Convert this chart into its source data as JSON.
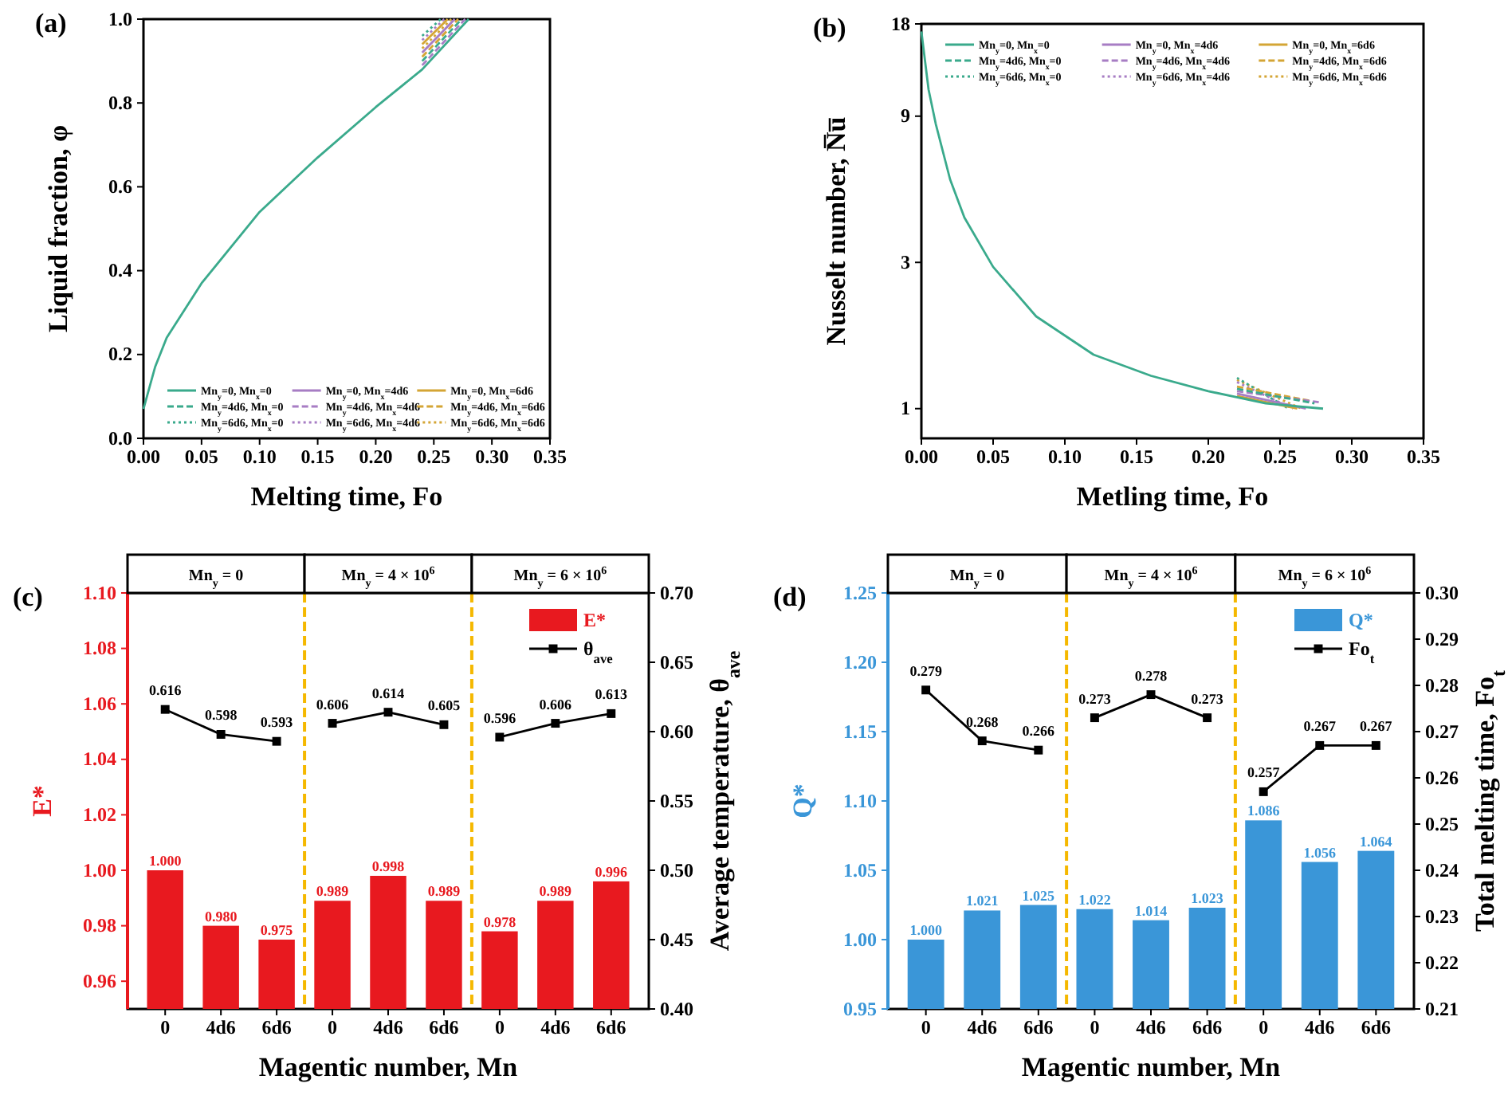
{
  "chart_data": [
    {
      "type": "line",
      "title": "(a)",
      "xlabel": "Melting time, Fo",
      "ylabel": "Liquid fraction, φ",
      "xlim": [
        0,
        0.35
      ],
      "ylim": [
        0,
        1
      ],
      "xticks": [
        {
          "value": 0,
          "label": "0.00"
        },
        {
          "value": 0.05,
          "label": "0.05"
        },
        {
          "value": 0.1,
          "label": "0.10"
        },
        {
          "value": 0.15,
          "label": "0.15"
        },
        {
          "value": 0.2,
          "label": "0.20"
        },
        {
          "value": 0.25,
          "label": "0.25"
        },
        {
          "value": 0.3,
          "label": "0.30"
        },
        {
          "value": 0.35,
          "label": "0.35"
        }
      ],
      "yticks": [
        {
          "value": 0,
          "label": "0.0"
        },
        {
          "value": 0.2,
          "label": "0.2"
        },
        {
          "value": 0.4,
          "label": "0.4"
        },
        {
          "value": 0.6,
          "label": "0.6"
        },
        {
          "value": 0.8,
          "label": "0.8"
        },
        {
          "value": 1,
          "label": "1.0"
        }
      ],
      "legend": "bottom",
      "series": [
        {
          "name": "Mn$_{y}$=0, Mn$_{x}$=0",
          "color": "#3aaa8c",
          "line_style": "solid",
          "x": [
            0,
            0.01,
            0.02,
            0.05,
            0.1,
            0.15,
            0.2,
            0.24,
            0.28
          ],
          "values": [
            0.07,
            0.17,
            0.24,
            0.37,
            0.54,
            0.67,
            0.79,
            0.88,
            1.0
          ]
        },
        {
          "name": "Mn$_{y}$=0, Mn$_{x}$=4d6",
          "color": "#a77dc4",
          "line_style": "solid",
          "x": [
            0.24,
            0.268
          ],
          "values": [
            0.92,
            1.0
          ]
        },
        {
          "name": "Mn$_{y}$=0, Mn$_{x}$=6d6",
          "color": "#d4a535",
          "line_style": "solid",
          "x": [
            0.24,
            0.262
          ],
          "values": [
            0.94,
            1.0
          ]
        },
        {
          "name": "Mn$_{y}$=4d6, Mn$_{x}$=0",
          "color": "#3aaa8c",
          "line_style": "dashed",
          "x": [
            0.24,
            0.274
          ],
          "values": [
            0.9,
            1.0
          ]
        },
        {
          "name": "Mn$_{y}$=4d6, Mn$_{x}$=4d6",
          "color": "#a77dc4",
          "line_style": "dashed",
          "x": [
            0.24,
            0.277
          ],
          "values": [
            0.89,
            1.0
          ]
        },
        {
          "name": "Mn$_{y}$=4d6, Mn$_{x}$=6d6",
          "color": "#d4a535",
          "line_style": "dashed",
          "x": [
            0.24,
            0.271
          ],
          "values": [
            0.91,
            1.0
          ]
        },
        {
          "name": "Mn$_{y}$=6d6, Mn$_{x}$=0",
          "color": "#3aaa8c",
          "line_style": "dotted",
          "x": [
            0.24,
            0.256
          ],
          "values": [
            0.96,
            1.0
          ]
        },
        {
          "name": "Mn$_{y}$=6d6, Mn$_{x}$=4d6",
          "color": "#a77dc4",
          "line_style": "dotted",
          "x": [
            0.24,
            0.259
          ],
          "values": [
            0.95,
            1.0
          ]
        },
        {
          "name": "Mn$_{y}$=6d6, Mn$_{x}$=6d6",
          "color": "#d4a535",
          "line_style": "dotted",
          "x": [
            0.24,
            0.265
          ],
          "values": [
            0.93,
            1.0
          ]
        }
      ]
    },
    {
      "type": "line",
      "title": "(b)",
      "xlabel": "Metling time, Fo",
      "ylabel": "Nusselt number, N̅u̅",
      "log": "y",
      "xlim": [
        0,
        0.35
      ],
      "ylim": [
        0.8,
        18
      ],
      "xticks": [
        {
          "value": 0,
          "label": "0.00"
        },
        {
          "value": 0.05,
          "label": "0.05"
        },
        {
          "value": 0.1,
          "label": "0.10"
        },
        {
          "value": 0.15,
          "label": "0.15"
        },
        {
          "value": 0.2,
          "label": "0.20"
        },
        {
          "value": 0.25,
          "label": "0.25"
        },
        {
          "value": 0.3,
          "label": "0.30"
        },
        {
          "value": 0.35,
          "label": "0.35"
        }
      ],
      "yticks": [
        1,
        3,
        9,
        18
      ],
      "legend": "top",
      "series": [
        {
          "name": "Mn$_{y}$=0, Mn$_{x}$=0",
          "color": "#3aaa8c",
          "line_style": "solid",
          "x": [
            0,
            0.005,
            0.01,
            0.02,
            0.03,
            0.05,
            0.08,
            0.12,
            0.16,
            0.2,
            0.24,
            0.28
          ],
          "values": [
            17,
            11,
            8.5,
            5.6,
            4.2,
            2.9,
            2.0,
            1.5,
            1.28,
            1.14,
            1.04,
            1.0
          ]
        },
        {
          "name": "Mn$_{y}$=0, Mn$_{x}$=4d6",
          "color": "#a77dc4",
          "line_style": "solid",
          "x": [
            0.22,
            0.268
          ],
          "values": [
            1.12,
            1.0
          ]
        },
        {
          "name": "Mn$_{y}$=0, Mn$_{x}$=6d6",
          "color": "#d4a535",
          "line_style": "solid",
          "x": [
            0.22,
            0.262
          ],
          "values": [
            1.1,
            1.0
          ]
        },
        {
          "name": "Mn$_{y}$=4d6, Mn$_{x}$=0",
          "color": "#3aaa8c",
          "line_style": "dashed",
          "x": [
            0.22,
            0.274
          ],
          "values": [
            1.16,
            1.04
          ]
        },
        {
          "name": "Mn$_{y}$=4d6, Mn$_{x}$=4d6",
          "color": "#a77dc4",
          "line_style": "dashed",
          "x": [
            0.22,
            0.277
          ],
          "values": [
            1.14,
            1.05
          ]
        },
        {
          "name": "Mn$_{y}$=4d6, Mn$_{x}$=6d6",
          "color": "#d4a535",
          "line_style": "dashed",
          "x": [
            0.22,
            0.271
          ],
          "values": [
            1.18,
            1.06
          ]
        },
        {
          "name": "Mn$_{y}$=6d6, Mn$_{x}$=0",
          "color": "#3aaa8c",
          "line_style": "dotted",
          "x": [
            0.22,
            0.256
          ],
          "values": [
            1.26,
            1.0
          ]
        },
        {
          "name": "Mn$_{y}$=6d6, Mn$_{x}$=4d6",
          "color": "#a77dc4",
          "line_style": "dotted",
          "x": [
            0.22,
            0.259
          ],
          "values": [
            1.22,
            1.0
          ]
        },
        {
          "name": "Mn$_{y}$=6d6, Mn$_{x}$=6d6",
          "color": "#d4a535",
          "line_style": "dotted",
          "x": [
            0.22,
            0.265
          ],
          "values": [
            1.24,
            1.0
          ]
        }
      ]
    },
    {
      "type": "bar",
      "title": "(c)",
      "xlabel": "Magentic number, Mn",
      "ylabel": "E*",
      "y2label": "Average temperature, θ$_{ave}$",
      "categories": [
        "0",
        "4d6",
        "6d6",
        "0",
        "4d6",
        "6d6",
        "0",
        "4d6",
        "6d6"
      ],
      "ylim": [
        0.95,
        1.1
      ],
      "yticks": [
        {
          "value": 0.96,
          "label": "0.96"
        },
        {
          "value": 0.98,
          "label": "0.98"
        },
        {
          "value": 1,
          "label": "1.00"
        },
        {
          "value": 1.02,
          "label": "1.02"
        },
        {
          "value": 1.04,
          "label": "1.04"
        },
        {
          "value": 1.06,
          "label": "1.06"
        },
        {
          "value": 1.08,
          "label": "1.08"
        },
        {
          "value": 1.1,
          "label": "1.10"
        }
      ],
      "y2lim": [
        0.4,
        0.7
      ],
      "y2ticks": [
        {
          "value": 0.4,
          "label": "0.40"
        },
        {
          "value": 0.45,
          "label": "0.45"
        },
        {
          "value": 0.5,
          "label": "0.50"
        },
        {
          "value": 0.55,
          "label": "0.55"
        },
        {
          "value": 0.6,
          "label": "0.60"
        },
        {
          "value": 0.65,
          "label": "0.65"
        },
        {
          "value": 0.7,
          "label": "0.70"
        }
      ],
      "legend": "top right",
      "marker": "square",
      "annotations": [
        "Mn$_{y}$ = 0",
        "Mn$_{y}$ = 4 × 10$^{6}$",
        "Mn$_{y}$ = 6 × 10$^{6}$"
      ],
      "series": [
        {
          "name": "E*",
          "color": "#e8191f",
          "values": [
            1.0,
            0.98,
            0.975,
            0.989,
            0.998,
            0.989,
            0.978,
            0.989,
            0.996
          ],
          "value_labels": [
            "1.000",
            "0.980",
            "0.975",
            "0.989",
            "0.998",
            "0.989",
            "0.978",
            "0.989",
            "0.996"
          ]
        },
        {
          "name": "θ$_{ave}$",
          "type": "line",
          "axis": "y2",
          "color": "#000000",
          "values": [
            0.616,
            0.598,
            0.593,
            null,
            null,
            null,
            null,
            null,
            null
          ],
          "value_labels": [
            "0.616",
            "0.598",
            "0.593",
            null,
            null,
            null,
            null,
            null,
            null
          ]
        },
        {
          "type": "line",
          "axis": "y2",
          "color": "#000000",
          "values": [
            null,
            null,
            null,
            0.606,
            0.614,
            0.605,
            null,
            null,
            null
          ],
          "value_labels": [
            null,
            null,
            null,
            "0.606",
            "0.614",
            "0.605",
            null,
            null,
            null
          ]
        },
        {
          "type": "line",
          "axis": "y2",
          "color": "#000000",
          "values": [
            null,
            null,
            null,
            null,
            null,
            null,
            0.596,
            0.606,
            0.613
          ],
          "value_labels": [
            null,
            null,
            null,
            null,
            null,
            null,
            "0.596",
            "0.606",
            "0.613"
          ]
        }
      ]
    },
    {
      "type": "bar",
      "title": "(d)",
      "xlabel": "Magentic number, Mn",
      "ylabel": "Q*",
      "y2label": "Total melting time, Fo$_{t}$",
      "categories": [
        "0",
        "4d6",
        "6d6",
        "0",
        "4d6",
        "6d6",
        "0",
        "4d6",
        "6d6"
      ],
      "ylim": [
        0.95,
        1.25
      ],
      "yticks": [
        {
          "value": 0.95,
          "label": "0.95"
        },
        {
          "value": 1,
          "label": "1.00"
        },
        {
          "value": 1.05,
          "label": "1.05"
        },
        {
          "value": 1.1,
          "label": "1.10"
        },
        {
          "value": 1.15,
          "label": "1.15"
        },
        {
          "value": 1.2,
          "label": "1.20"
        },
        {
          "value": 1.25,
          "label": "1.25"
        }
      ],
      "y2lim": [
        0.21,
        0.3
      ],
      "y2ticks": [
        {
          "value": 0.21,
          "label": "0.21"
        },
        {
          "value": 0.22,
          "label": "0.22"
        },
        {
          "value": 0.23,
          "label": "0.23"
        },
        {
          "value": 0.24,
          "label": "0.24"
        },
        {
          "value": 0.25,
          "label": "0.25"
        },
        {
          "value": 0.26,
          "label": "0.26"
        },
        {
          "value": 0.27,
          "label": "0.27"
        },
        {
          "value": 0.28,
          "label": "0.28"
        },
        {
          "value": 0.29,
          "label": "0.29"
        },
        {
          "value": 0.3,
          "label": "0.30"
        }
      ],
      "legend": "top right",
      "marker": "square",
      "annotations": [
        "Mn$_{y}$ = 0",
        "Mn$_{y}$ = 4 × 10$^{6}$",
        "Mn$_{y}$ = 6 × 10$^{6}$"
      ],
      "series": [
        {
          "name": "Q*",
          "color": "#3a96d8",
          "values": [
            1.0,
            1.021,
            1.025,
            1.022,
            1.014,
            1.023,
            1.086,
            1.056,
            1.064
          ],
          "value_labels": [
            "1.000",
            "1.021",
            "1.025",
            "1.022",
            "1.014",
            "1.023",
            "1.086",
            "1.056",
            "1.064"
          ]
        },
        {
          "name": "Fo$_{t}$",
          "type": "line",
          "axis": "y2",
          "color": "#000000",
          "values": [
            0.279,
            0.268,
            0.266,
            null,
            null,
            null,
            null,
            null,
            null
          ],
          "value_labels": [
            "0.279",
            "0.268",
            "0.266",
            null,
            null,
            null,
            null,
            null,
            null
          ]
        },
        {
          "type": "line",
          "axis": "y2",
          "color": "#000000",
          "values": [
            null,
            null,
            null,
            0.273,
            0.278,
            0.273,
            null,
            null,
            null
          ],
          "value_labels": [
            null,
            null,
            null,
            "0.273",
            "0.278",
            "0.273",
            null,
            null,
            null
          ]
        },
        {
          "type": "line",
          "axis": "y2",
          "color": "#000000",
          "values": [
            null,
            null,
            null,
            null,
            null,
            null,
            0.257,
            0.267,
            0.267
          ],
          "value_labels": [
            null,
            null,
            null,
            null,
            null,
            null,
            "0.257",
            "0.267",
            "0.267"
          ]
        }
      ]
    }
  ]
}
